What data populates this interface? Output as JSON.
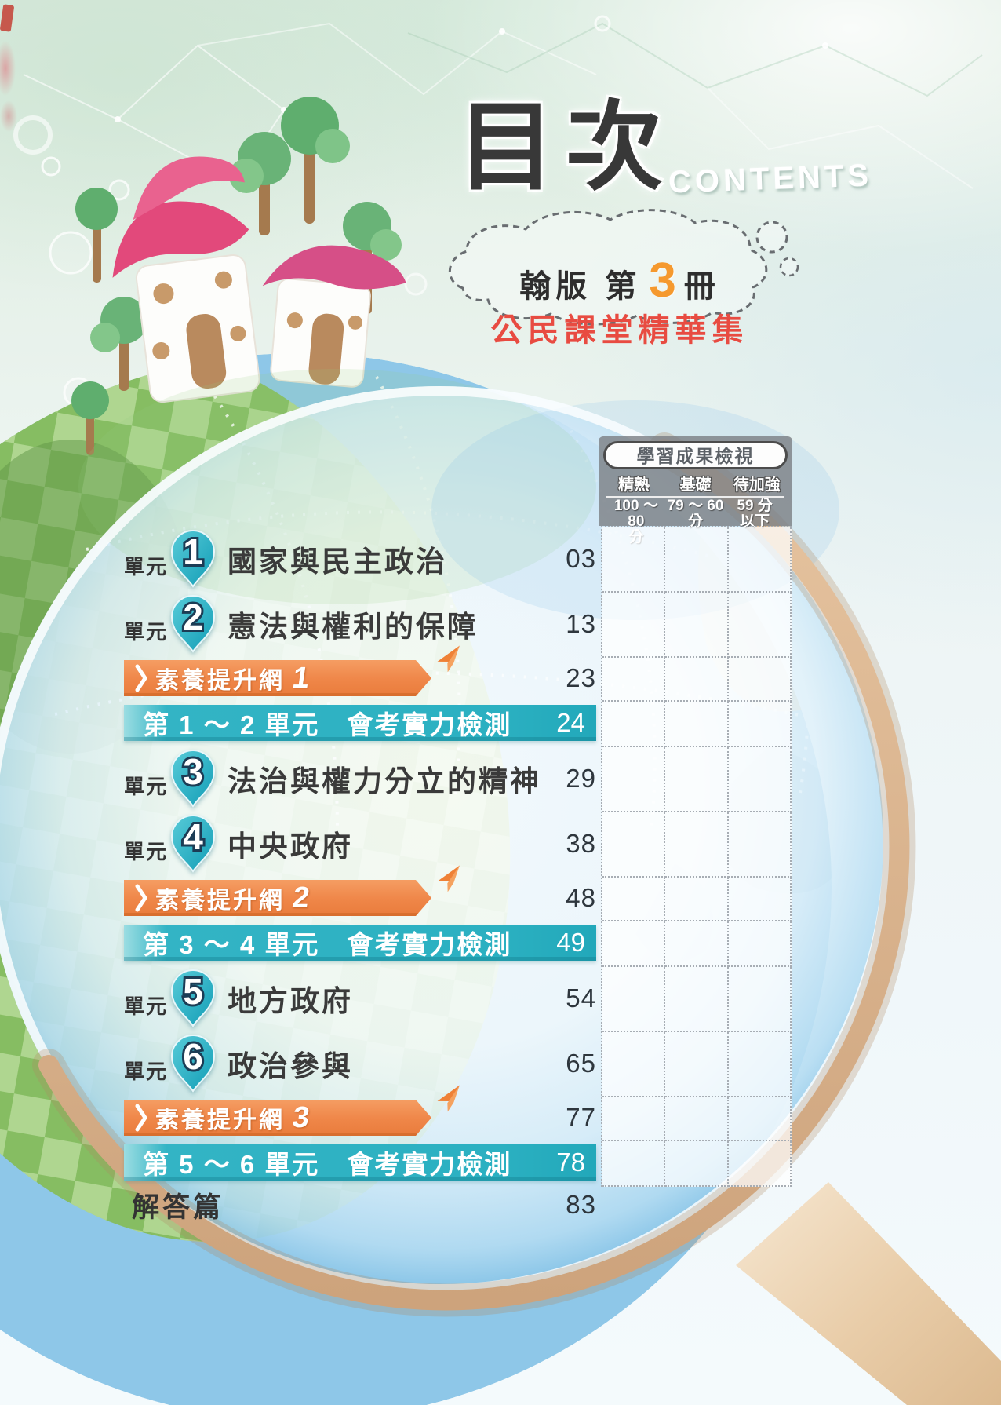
{
  "page_title": "目次",
  "page_title_en": "CONTENTS",
  "cloud": {
    "edition_prefix": "翰版 第",
    "edition_number": "3",
    "edition_suffix": "冊",
    "series_name": "公民課堂精華集"
  },
  "assessment": {
    "title": "學習成果檢視",
    "columns": [
      {
        "level": "精熟",
        "range": "100 ～ 80\n分"
      },
      {
        "level": "基礎",
        "range": "79 ～ 60\n分"
      },
      {
        "level": "待加強",
        "range": "59 分\n以下"
      }
    ]
  },
  "toc": {
    "unit_prefix": "單元",
    "rows": [
      {
        "type": "unit",
        "num": "1",
        "label": "國家與民主政治",
        "page": "03"
      },
      {
        "type": "unit",
        "num": "2",
        "label": "憲法與權利的保障",
        "page": "13"
      },
      {
        "type": "award",
        "num": "1",
        "label": "素養提升網",
        "page": "23"
      },
      {
        "type": "exam",
        "label": "第 1 ～ 2 單元　會考實力檢測",
        "page": "24"
      },
      {
        "type": "unit",
        "num": "3",
        "label": "法治與權力分立的精神",
        "page": "29"
      },
      {
        "type": "unit",
        "num": "4",
        "label": "中央政府",
        "page": "38"
      },
      {
        "type": "award",
        "num": "2",
        "label": "素養提升網",
        "page": "48"
      },
      {
        "type": "exam",
        "label": "第 3 ～ 4 單元　會考實力檢測",
        "page": "49"
      },
      {
        "type": "unit",
        "num": "5",
        "label": "地方政府",
        "page": "54"
      },
      {
        "type": "unit",
        "num": "6",
        "label": "政治參與",
        "page": "65"
      },
      {
        "type": "award",
        "num": "3",
        "label": "素養提升網",
        "page": "77"
      },
      {
        "type": "exam",
        "label": "第 5 ～ 6 單元　會考實力檢測",
        "page": "78"
      },
      {
        "type": "plain",
        "label": "解答篇",
        "page": "83"
      }
    ]
  },
  "colors": {
    "accent_teal": "#2bb3c4",
    "accent_orange": "#f08a4b",
    "series_red": "#e84b41",
    "edition_number_orange": "#f5992e",
    "pin_teal": "#1fa9bf",
    "header_gray": "#7a7e83"
  }
}
